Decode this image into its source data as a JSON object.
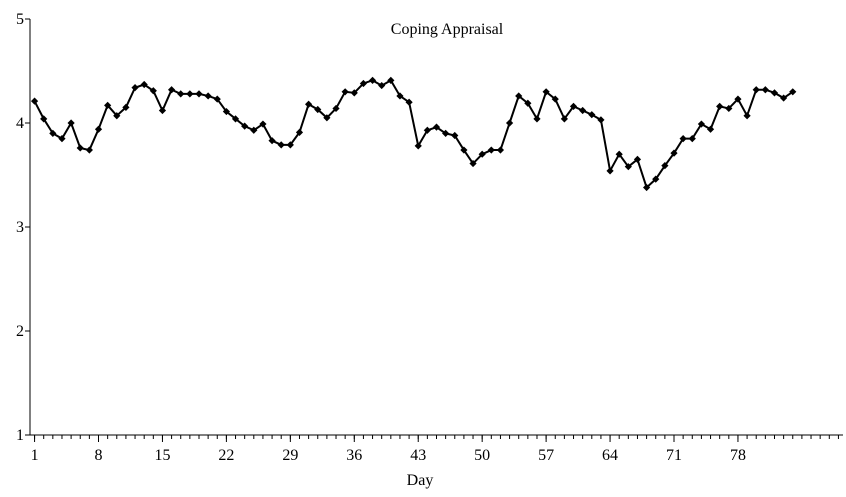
{
  "chart_data": {
    "type": "line",
    "title": "Coping Appraisal",
    "xlabel": "Day",
    "x": [
      1,
      2,
      3,
      4,
      5,
      6,
      7,
      8,
      9,
      10,
      11,
      12,
      13,
      14,
      15,
      16,
      17,
      18,
      19,
      20,
      21,
      22,
      23,
      24,
      25,
      26,
      27,
      28,
      29,
      30,
      31,
      32,
      33,
      34,
      35,
      36,
      37,
      38,
      39,
      40,
      41,
      42,
      43,
      44,
      45,
      46,
      47,
      48,
      49,
      50,
      51,
      52,
      53,
      54,
      55,
      56,
      57,
      58,
      59,
      60,
      61,
      62,
      63,
      64,
      65,
      66,
      67,
      68,
      69,
      70,
      71,
      72,
      73,
      74,
      75,
      76,
      77,
      78,
      79,
      80,
      81,
      82,
      83,
      84
    ],
    "series": [
      {
        "color": "#000000",
        "values": [
          4.21,
          4.04,
          3.9,
          3.85,
          4.0,
          3.76,
          3.74,
          3.94,
          4.17,
          4.07,
          4.15,
          4.34,
          4.37,
          4.31,
          4.12,
          4.32,
          4.28,
          4.28,
          4.28,
          4.26,
          4.23,
          4.11,
          4.04,
          3.97,
          3.93,
          3.99,
          3.83,
          3.79,
          3.79,
          3.91,
          4.18,
          4.13,
          4.05,
          4.14,
          4.3,
          4.29,
          4.38,
          4.41,
          4.36,
          4.41,
          4.26,
          4.2,
          3.78,
          3.93,
          3.96,
          3.9,
          3.88,
          3.74,
          3.61,
          3.7,
          3.74,
          3.74,
          4.0,
          4.26,
          4.19,
          4.04,
          4.3,
          4.23,
          4.04,
          4.16,
          4.12,
          4.08,
          4.03,
          3.54,
          3.7,
          3.58,
          3.65,
          3.38,
          3.46,
          3.59,
          3.71,
          3.85,
          3.85,
          3.99,
          3.94,
          4.16,
          4.14,
          4.23,
          4.07,
          4.32,
          4.32,
          4.29,
          4.24,
          4.3
        ]
      }
    ],
    "xlim": [
      0.5,
      89.5
    ],
    "xticks": [
      1,
      8,
      15,
      22,
      29,
      36,
      43,
      50,
      57,
      64,
      71,
      78
    ],
    "ylim": [
      1,
      5
    ],
    "yticks": [
      1,
      2,
      3,
      4,
      5
    ]
  }
}
